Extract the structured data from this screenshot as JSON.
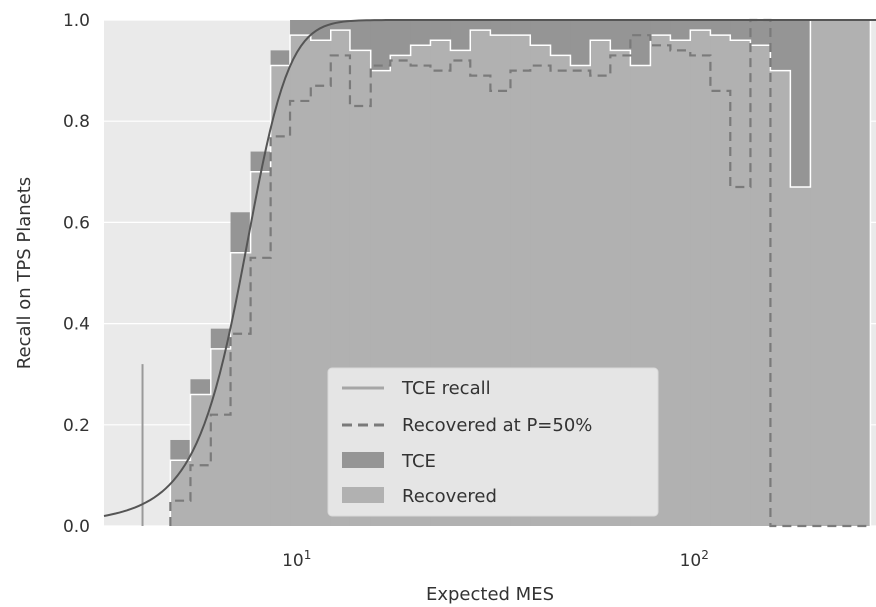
{
  "chart_data": {
    "type": "histogram-step",
    "xlabel": "Expected MES",
    "ylabel": "Recall on TPS Planets",
    "xscale": "log",
    "xlim": [
      3.2,
      280
    ],
    "ylim": [
      0.0,
      1.0
    ],
    "grid": true,
    "legend_placement": "lower-center",
    "x_tick_labels": [
      {
        "value": 10,
        "base": "10",
        "exp": "1"
      },
      {
        "value": 100,
        "base": "10",
        "exp": "2"
      }
    ],
    "y_tick_labels": [
      "0.0",
      "0.2",
      "0.4",
      "0.6",
      "0.8",
      "1.0"
    ],
    "y_tick_values": [
      0.0,
      0.2,
      0.4,
      0.6,
      0.8,
      1.0
    ],
    "bin_edges": [
      4.7,
      5.28,
      5.94,
      6.66,
      7.48,
      8.4,
      9.4,
      10.6,
      11.9,
      13.3,
      15.0,
      16.8,
      18.9,
      21.2,
      23.8,
      26.7,
      30.0,
      33.7,
      37.8,
      42.5,
      47.7,
      53.5,
      60.1,
      67.5,
      75.8,
      85.1,
      95.5,
      107.3,
      120.4,
      135.3,
      151.9,
      170.5,
      191.5,
      215.0,
      241.4,
      271.1
    ],
    "series": [
      {
        "name": "TCE",
        "color": "#959595",
        "values": [
          0.17,
          0.29,
          0.39,
          0.62,
          0.74,
          0.94,
          1.0,
          1.0,
          1.0,
          1.0,
          1.0,
          1.0,
          1.0,
          1.0,
          1.0,
          1.0,
          1.0,
          1.0,
          1.0,
          1.0,
          1.0,
          1.0,
          1.0,
          1.0,
          1.0,
          1.0,
          1.0,
          1.0,
          1.0,
          1.0,
          1.0,
          1.0,
          1.0,
          1.0,
          1.0
        ]
      },
      {
        "name": "Recovered",
        "color": "#b1b1b1",
        "values": [
          0.13,
          0.26,
          0.35,
          0.54,
          0.7,
          0.91,
          0.97,
          0.96,
          0.98,
          0.94,
          0.9,
          0.93,
          0.95,
          0.96,
          0.94,
          0.98,
          0.97,
          0.97,
          0.95,
          0.93,
          0.91,
          0.96,
          0.94,
          0.91,
          0.97,
          0.96,
          0.98,
          0.97,
          0.96,
          0.95,
          0.9,
          0.67,
          1.0,
          1.0,
          1.0
        ]
      },
      {
        "name": "Recovered at P=50%",
        "color": "#7a7a7a",
        "values": [
          0.05,
          0.12,
          0.22,
          0.38,
          0.53,
          0.77,
          0.84,
          0.87,
          0.93,
          0.83,
          0.91,
          0.92,
          0.91,
          0.9,
          0.92,
          0.89,
          0.86,
          0.9,
          0.91,
          0.9,
          0.9,
          0.89,
          0.93,
          0.97,
          0.95,
          0.94,
          0.93,
          0.86,
          0.67,
          1.0,
          0.0,
          0.0,
          0.0,
          0.0,
          0.0
        ]
      },
      {
        "name": "TCE recall",
        "color": "#555555",
        "type": "curve",
        "mu": 7.1,
        "sigma": 1.0
      }
    ],
    "extra_spike": {
      "x": 4.0,
      "value": 0.32
    },
    "colors": {
      "plot_bg": "#eaeaea",
      "grid": "#ffffff",
      "spine": "#ffffff",
      "legend_bg": "#e5e5e5"
    }
  }
}
